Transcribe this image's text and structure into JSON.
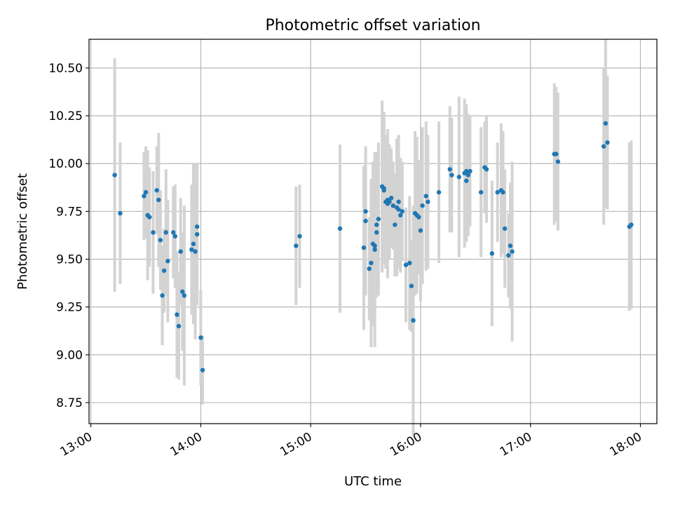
{
  "chart_data": {
    "type": "scatter",
    "title": "Photometric offset variation",
    "xlabel": "UTC time",
    "ylabel": "Photometric offset",
    "x_unit": "hours",
    "xlim": [
      "12:59",
      "18:09"
    ],
    "ylim": [
      8.64,
      10.65
    ],
    "x_ticks": [
      "13:00",
      "14:00",
      "15:00",
      "16:00",
      "17:00",
      "18:00"
    ],
    "y_ticks": [
      8.75,
      9.0,
      9.25,
      9.5,
      9.75,
      10.0,
      10.25,
      10.5
    ],
    "y_tick_labels": [
      "8.75",
      "9.00",
      "9.25",
      "9.50",
      "9.75",
      "10.00",
      "10.25",
      "10.50"
    ],
    "grid": true,
    "colors": {
      "points": "#1f77b4",
      "errorbars": "#d3d3d3",
      "grid": "#b0b0b0"
    },
    "series": [
      {
        "points": [
          {
            "x": "13:13",
            "y": 9.94,
            "err": 0.61
          },
          {
            "x": "13:16",
            "y": 9.74,
            "err": 0.37
          },
          {
            "x": "13:29",
            "y": 9.83,
            "err": 0.23
          },
          {
            "x": "13:30",
            "y": 9.85,
            "err": 0.24
          },
          {
            "x": "13:31",
            "y": 9.73,
            "err": 0.34
          },
          {
            "x": "13:32",
            "y": 9.72,
            "err": 0.26
          },
          {
            "x": "13:34",
            "y": 9.64,
            "err": 0.32
          },
          {
            "x": "13:36",
            "y": 9.86,
            "err": 0.23
          },
          {
            "x": "13:37",
            "y": 9.81,
            "err": 0.35
          },
          {
            "x": "13:38",
            "y": 9.6,
            "err": 0.26
          },
          {
            "x": "13:39",
            "y": 9.31,
            "err": 0.26
          },
          {
            "x": "13:40",
            "y": 9.44,
            "err": 0.22
          },
          {
            "x": "13:41",
            "y": 9.64,
            "err": 0.33
          },
          {
            "x": "13:42",
            "y": 9.49,
            "err": 0.32
          },
          {
            "x": "13:45",
            "y": 9.64,
            "err": 0.24
          },
          {
            "x": "13:46",
            "y": 9.62,
            "err": 0.27
          },
          {
            "x": "13:47",
            "y": 9.21,
            "err": 0.33
          },
          {
            "x": "13:48",
            "y": 9.15,
            "err": 0.28
          },
          {
            "x": "13:49",
            "y": 9.54,
            "err": 0.28
          },
          {
            "x": "13:50",
            "y": 9.33,
            "err": 0.31
          },
          {
            "x": "13:51",
            "y": 9.31,
            "err": 0.47
          },
          {
            "x": "13:55",
            "y": 9.55,
            "err": 0.34
          },
          {
            "x": "13:56",
            "y": 9.58,
            "err": 0.42
          },
          {
            "x": "13:57",
            "y": 9.54,
            "err": 0.46
          },
          {
            "x": "13:58",
            "y": 9.67,
            "err": 0.33
          },
          {
            "x": "13:58",
            "y": 9.63,
            "err": 0.37
          },
          {
            "x": "14:00",
            "y": 9.09,
            "err": 0.25
          },
          {
            "x": "14:01",
            "y": 8.92,
            "err": 0.18
          },
          {
            "x": "14:52",
            "y": 9.57,
            "err": 0.31
          },
          {
            "x": "14:54",
            "y": 9.62,
            "err": 0.27
          },
          {
            "x": "15:16",
            "y": 9.66,
            "err": 0.44
          },
          {
            "x": "15:29",
            "y": 9.56,
            "err": 0.43
          },
          {
            "x": "15:30",
            "y": 9.7,
            "err": 0.39
          },
          {
            "x": "15:30",
            "y": 9.75,
            "err": 0.29
          },
          {
            "x": "15:32",
            "y": 9.45,
            "err": 0.27
          },
          {
            "x": "15:33",
            "y": 9.48,
            "err": 0.44
          },
          {
            "x": "15:34",
            "y": 9.58,
            "err": 0.43
          },
          {
            "x": "15:35",
            "y": 9.57,
            "err": 0.4
          },
          {
            "x": "15:35",
            "y": 9.55,
            "err": 0.51
          },
          {
            "x": "15:36",
            "y": 9.64,
            "err": 0.34
          },
          {
            "x": "15:36",
            "y": 9.68,
            "err": 0.38
          },
          {
            "x": "15:37",
            "y": 9.71,
            "err": 0.4
          },
          {
            "x": "15:39",
            "y": 9.88,
            "err": 0.45
          },
          {
            "x": "15:40",
            "y": 9.87,
            "err": 0.4
          },
          {
            "x": "15:40",
            "y": 9.86,
            "err": 0.37
          },
          {
            "x": "15:41",
            "y": 9.8,
            "err": 0.35
          },
          {
            "x": "15:42",
            "y": 9.81,
            "err": 0.3
          },
          {
            "x": "15:42",
            "y": 9.79,
            "err": 0.39
          },
          {
            "x": "15:43",
            "y": 9.8,
            "err": 0.3
          },
          {
            "x": "15:44",
            "y": 9.82,
            "err": 0.26
          },
          {
            "x": "15:45",
            "y": 9.78,
            "err": 0.23
          },
          {
            "x": "15:46",
            "y": 9.68,
            "err": 0.27
          },
          {
            "x": "15:47",
            "y": 9.77,
            "err": 0.36
          },
          {
            "x": "15:48",
            "y": 9.76,
            "err": 0.28
          },
          {
            "x": "15:48",
            "y": 9.8,
            "err": 0.35
          },
          {
            "x": "15:49",
            "y": 9.73,
            "err": 0.3
          },
          {
            "x": "15:50",
            "y": 9.75,
            "err": 0.26
          },
          {
            "x": "15:52",
            "y": 9.47,
            "err": 0.3
          },
          {
            "x": "15:54",
            "y": 9.48,
            "err": 0.35
          },
          {
            "x": "15:55",
            "y": 9.36,
            "err": 0.24
          },
          {
            "x": "15:56",
            "y": 9.18,
            "err": 0.6
          },
          {
            "x": "15:56",
            "y": 9.18,
            "err": 0.45
          },
          {
            "x": "15:57",
            "y": 9.74,
            "err": 0.43
          },
          {
            "x": "15:58",
            "y": 9.73,
            "err": 0.41
          },
          {
            "x": "15:59",
            "y": 9.72,
            "err": 0.3
          },
          {
            "x": "16:00",
            "y": 9.65,
            "err": 0.37
          },
          {
            "x": "16:01",
            "y": 9.78,
            "err": 0.41
          },
          {
            "x": "16:03",
            "y": 9.83,
            "err": 0.39
          },
          {
            "x": "16:04",
            "y": 9.8,
            "err": 0.35
          },
          {
            "x": "16:10",
            "y": 9.85,
            "err": 0.37
          },
          {
            "x": "16:16",
            "y": 9.97,
            "err": 0.33
          },
          {
            "x": "16:17",
            "y": 9.94,
            "err": 0.3
          },
          {
            "x": "16:21",
            "y": 9.93,
            "err": 0.42
          },
          {
            "x": "16:24",
            "y": 9.95,
            "err": 0.39
          },
          {
            "x": "16:25",
            "y": 9.91,
            "err": 0.32
          },
          {
            "x": "16:25",
            "y": 9.96,
            "err": 0.35
          },
          {
            "x": "16:26",
            "y": 9.94,
            "err": 0.32
          },
          {
            "x": "16:27",
            "y": 9.96,
            "err": 0.29
          },
          {
            "x": "16:33",
            "y": 9.85,
            "err": 0.34
          },
          {
            "x": "16:35",
            "y": 9.98,
            "err": 0.24
          },
          {
            "x": "16:36",
            "y": 9.97,
            "err": 0.28
          },
          {
            "x": "16:39",
            "y": 9.53,
            "err": 0.38
          },
          {
            "x": "16:42",
            "y": 9.85,
            "err": 0.26
          },
          {
            "x": "16:44",
            "y": 9.86,
            "err": 0.35
          },
          {
            "x": "16:45",
            "y": 9.85,
            "err": 0.32
          },
          {
            "x": "16:46",
            "y": 9.66,
            "err": 0.31
          },
          {
            "x": "16:48",
            "y": 9.52,
            "err": 0.22
          },
          {
            "x": "16:49",
            "y": 9.57,
            "err": 0.33
          },
          {
            "x": "16:50",
            "y": 9.54,
            "err": 0.47
          },
          {
            "x": "17:13",
            "y": 10.05,
            "err": 0.37
          },
          {
            "x": "17:14",
            "y": 10.05,
            "err": 0.35
          },
          {
            "x": "17:15",
            "y": 10.01,
            "err": 0.36
          },
          {
            "x": "17:40",
            "y": 10.09,
            "err": 0.41
          },
          {
            "x": "17:41",
            "y": 10.21,
            "err": 0.44
          },
          {
            "x": "17:42",
            "y": 10.11,
            "err": 0.35
          },
          {
            "x": "17:54",
            "y": 9.67,
            "err": 0.44
          },
          {
            "x": "17:55",
            "y": 9.68,
            "err": 0.44
          }
        ]
      }
    ]
  }
}
